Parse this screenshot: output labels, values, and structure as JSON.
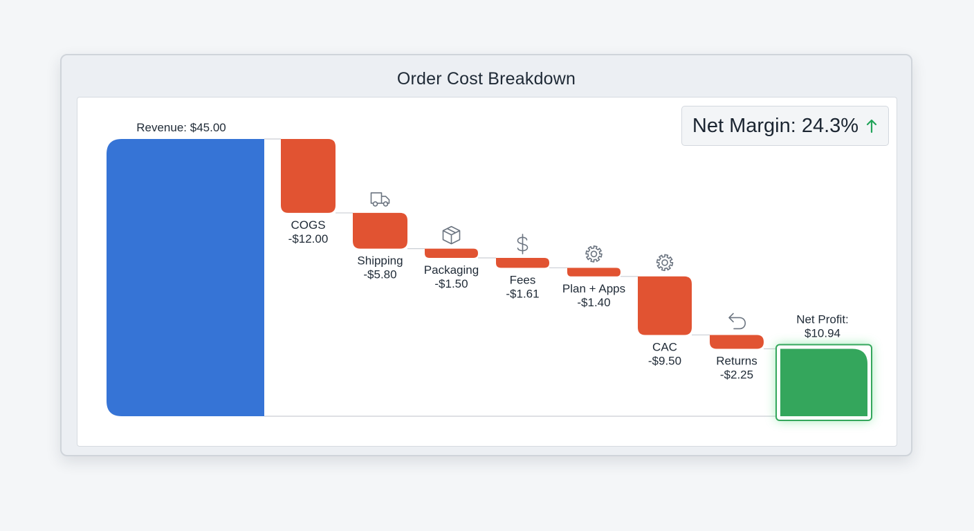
{
  "title": "Order Cost Breakdown",
  "kpi": {
    "label": "Net Margin: 24.3%",
    "trend": "up",
    "trend_color": "#22a35a"
  },
  "colors": {
    "total": "#3674d6",
    "decrease": "#e15332",
    "result": "#34a65c",
    "result_glow": "#4fd878",
    "connector": "#c9ced4",
    "icon": "#6b7480"
  },
  "chart_data": {
    "type": "bar",
    "variant": "waterfall",
    "title": "Order Cost Breakdown",
    "xlabel": "",
    "ylabel": "",
    "grid": false,
    "ylim": [
      0,
      45
    ],
    "steps": [
      {
        "kind": "total",
        "value": 45.0,
        "label": "Revenue: $45.00"
      },
      {
        "kind": "decrease",
        "value": -12.0,
        "name": "COGS",
        "value_label": "-$12.00"
      },
      {
        "kind": "decrease",
        "value": -5.8,
        "name": "Shipping",
        "value_label": "-$5.80",
        "icon": "truck-icon"
      },
      {
        "kind": "decrease",
        "value": -1.5,
        "name": "Packaging",
        "value_label": "-$1.50",
        "icon": "box-icon"
      },
      {
        "kind": "decrease",
        "value": -1.61,
        "name": "Fees",
        "value_label": "-$1.61",
        "icon": "dollar-icon"
      },
      {
        "kind": "decrease",
        "value": -1.4,
        "name": "Plan + Apps",
        "value_label": "-$1.40",
        "icon": "gear-icon"
      },
      {
        "kind": "decrease",
        "value": -9.5,
        "name": "CAC",
        "value_label": "-$9.50",
        "icon": "gear-icon"
      },
      {
        "kind": "decrease",
        "value": -2.25,
        "name": "Returns",
        "value_label": "-$2.25",
        "icon": "return-icon"
      },
      {
        "kind": "result",
        "value": 10.94,
        "name": "Net Profit:",
        "value_label": "$10.94"
      }
    ]
  }
}
